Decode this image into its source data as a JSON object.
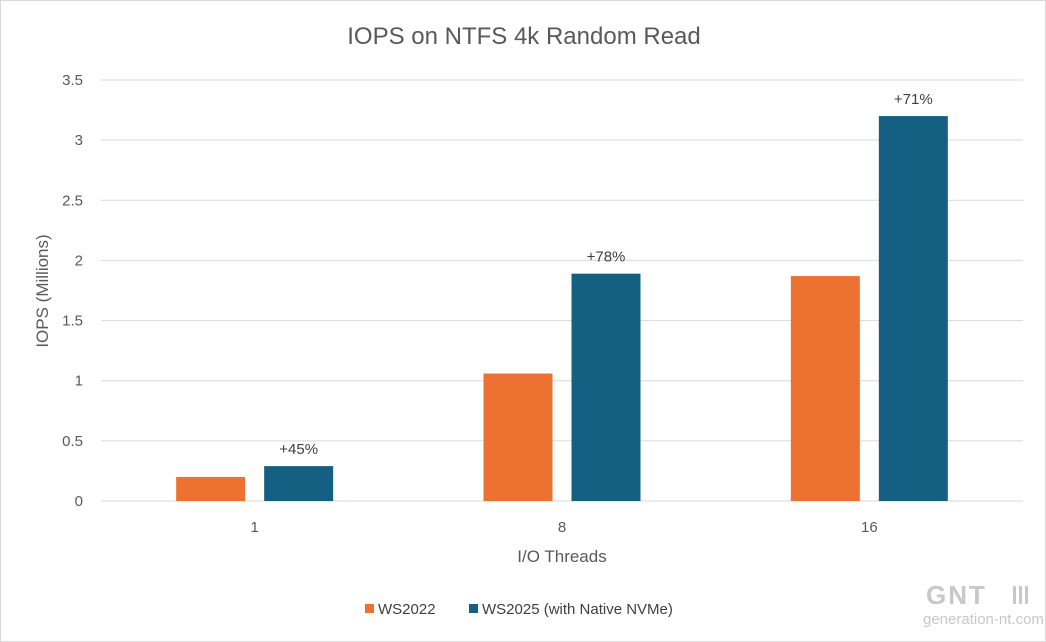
{
  "chart_data": {
    "type": "bar",
    "title": "IOPS on NTFS 4k Random Read",
    "xlabel": "I/O Threads",
    "ylabel": "IOPS (Millions)",
    "categories": [
      "1",
      "8",
      "16"
    ],
    "ylim": [
      0,
      3.5
    ],
    "yticks": [
      0,
      0.5,
      1,
      1.5,
      2,
      2.5,
      3,
      3.5
    ],
    "grid": true,
    "legend_position": "bottom",
    "series": [
      {
        "name": "WS2022",
        "color": "#ED7130",
        "values": [
          0.2,
          1.06,
          1.87
        ]
      },
      {
        "name": "WS2025 (with Native NVMe)",
        "color": "#156082",
        "values": [
          0.29,
          1.89,
          3.2
        ]
      }
    ],
    "annotations": [
      {
        "category": "1",
        "series": 1,
        "text": "+45%"
      },
      {
        "category": "8",
        "series": 1,
        "text": "+78%"
      },
      {
        "category": "16",
        "series": 1,
        "text": "+71%"
      }
    ]
  },
  "watermark": {
    "brand": "GNT",
    "site": "generation-nt.com"
  }
}
